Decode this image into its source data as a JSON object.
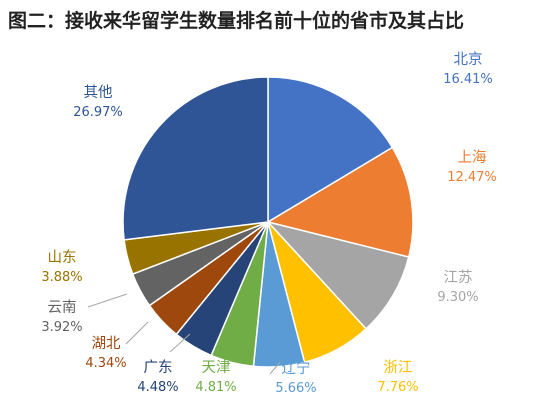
{
  "page": {
    "title": "图二：接收来华留学生数量排名前十位的省市及其占比"
  },
  "chart_data": {
    "type": "pie",
    "title": "图二：接收来华留学生数量排名前十位的省市及其占比",
    "start_angle_deg": 0,
    "direction": "clockwise",
    "slices": [
      {
        "name": "北京",
        "value": 16.41,
        "label": "16.41%",
        "color": "#4472C4"
      },
      {
        "name": "上海",
        "value": 12.47,
        "label": "12.47%",
        "color": "#ED7D31"
      },
      {
        "name": "江苏",
        "value": 9.3,
        "label": "9.30%",
        "color": "#A5A5A5"
      },
      {
        "name": "浙江",
        "value": 7.76,
        "label": "7.76%",
        "color": "#FFC000"
      },
      {
        "name": "辽宁",
        "value": 5.66,
        "label": "5.66%",
        "color": "#5B9BD5"
      },
      {
        "name": "天津",
        "value": 4.81,
        "label": "4.81%",
        "color": "#70AD47"
      },
      {
        "name": "广东",
        "value": 4.48,
        "label": "4.48%",
        "color": "#264478"
      },
      {
        "name": "湖北",
        "value": 4.34,
        "label": "4.34%",
        "color": "#9E480E"
      },
      {
        "name": "云南",
        "value": 3.92,
        "label": "3.92%",
        "color": "#636363"
      },
      {
        "name": "山东",
        "value": 3.88,
        "label": "3.88%",
        "color": "#997300"
      },
      {
        "name": "其他",
        "value": 26.97,
        "label": "26.97%",
        "color": "#2F5597"
      }
    ],
    "label_colors": {
      "北京": "#4472C4",
      "上海": "#ED7D31",
      "江苏": "#A5A5A5",
      "浙江": "#FFC000",
      "辽宁": "#5B9BD5",
      "天津": "#70AD47",
      "广东": "#264478",
      "湖北": "#9E480E",
      "云南": "#636363",
      "山东": "#997300",
      "其他": "#2F5597"
    }
  }
}
